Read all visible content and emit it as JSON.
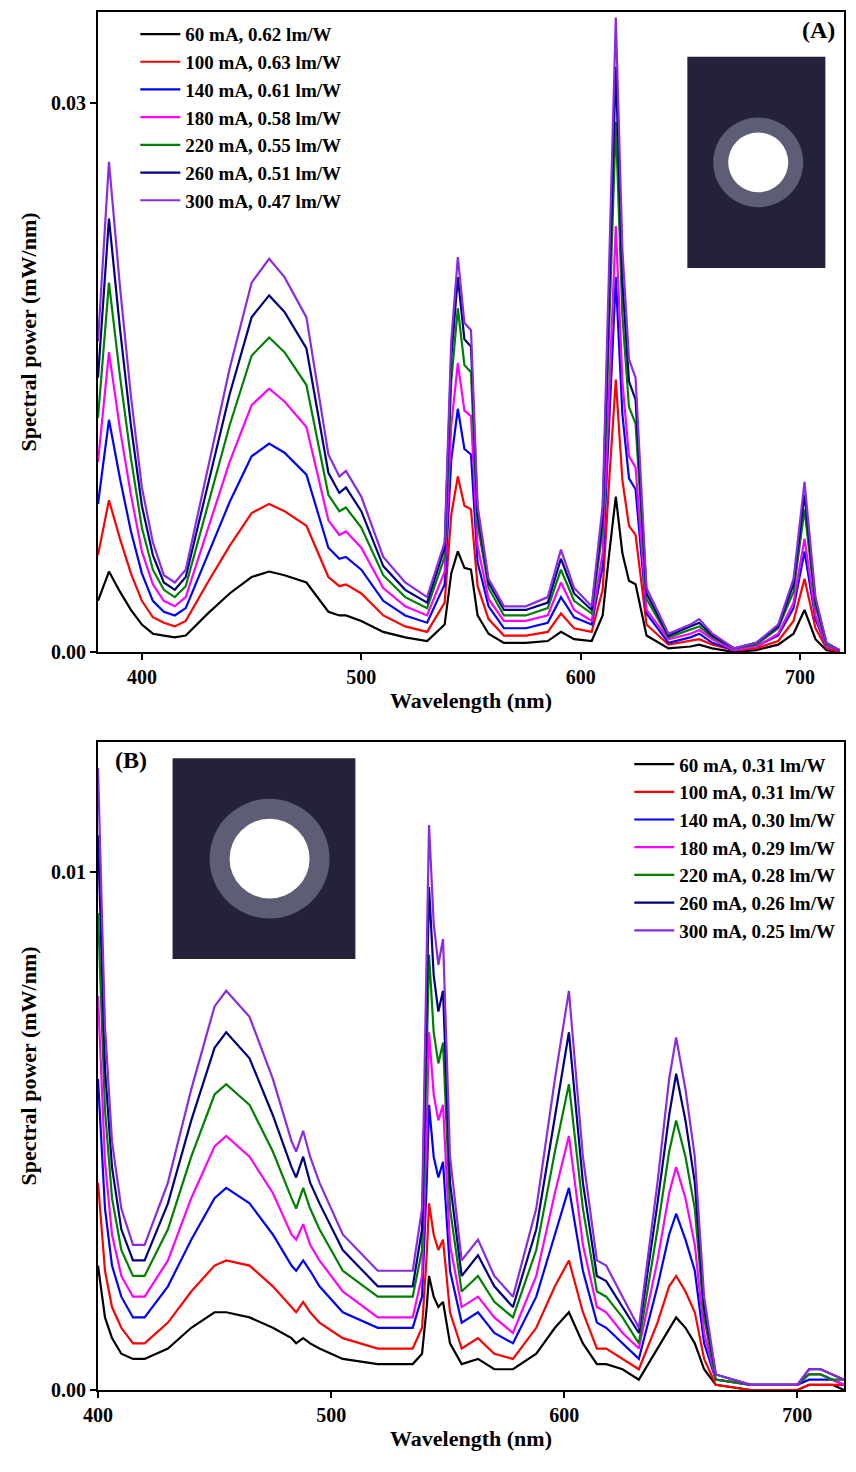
{
  "chart_data": [
    {
      "type": "line",
      "annotations": [
        "(A)"
      ],
      "x_label": "Wavelength (nm)",
      "y_label": "Spectral power (mW/nm)",
      "x": [
        380,
        385,
        390,
        395,
        400,
        405,
        410,
        415,
        420,
        430,
        440,
        450,
        458,
        465,
        475,
        485,
        490,
        493,
        500,
        510,
        520,
        530,
        538,
        541,
        544,
        547,
        550,
        553,
        558,
        565,
        575,
        585,
        591,
        597,
        605,
        610,
        613,
        616,
        619,
        622,
        625,
        630,
        640,
        650,
        654,
        660,
        670,
        680,
        690,
        697,
        702,
        707,
        712,
        718
      ],
      "xlim": [
        380,
        720
      ],
      "xticks": [
        400,
        500,
        600,
        700
      ],
      "ylim": [
        0,
        0.035
      ],
      "yticks": [
        {
          "value": 0,
          "label": "0.00"
        },
        {
          "value": 0.03,
          "label": "0.03"
        }
      ],
      "grid": false,
      "legend": "upper left",
      "series": [
        {
          "name": "60 mA, 0.62 lm/W",
          "color": "#000000",
          "values": [
            0.0028,
            0.0044,
            0.0033,
            0.0023,
            0.0015,
            0.001,
            0.0009,
            0.0008,
            0.0009,
            0.0021,
            0.0032,
            0.0041,
            0.0044,
            0.0042,
            0.0038,
            0.0022,
            0.002,
            0.002,
            0.0017,
            0.0011,
            0.0008,
            0.0006,
            0.0015,
            0.0043,
            0.0055,
            0.0046,
            0.0045,
            0.002,
            0.001,
            0.0005,
            0.0005,
            0.0006,
            0.0011,
            0.0007,
            0.0006,
            0.002,
            0.0054,
            0.0085,
            0.0054,
            0.0039,
            0.0037,
            0.0009,
            0.0002,
            0.0003,
            0.0004,
            0.0002,
            0,
            0.0001,
            0.0004,
            0.001,
            0.0023,
            0.0007,
            0.0001,
            0
          ]
        },
        {
          "name": "100 mA, 0.63 lm/W",
          "color": "#ff0000",
          "values": [
            0.0053,
            0.0083,
            0.0062,
            0.0043,
            0.0028,
            0.0019,
            0.0016,
            0.0014,
            0.0017,
            0.0038,
            0.0058,
            0.0076,
            0.0081,
            0.0077,
            0.0069,
            0.0041,
            0.0036,
            0.0037,
            0.0032,
            0.002,
            0.0014,
            0.0011,
            0.0027,
            0.0075,
            0.0096,
            0.008,
            0.0078,
            0.0036,
            0.0018,
            0.0009,
            0.0009,
            0.0011,
            0.0021,
            0.0013,
            0.0011,
            0.0034,
            0.0094,
            0.0149,
            0.0094,
            0.0069,
            0.0064,
            0.0015,
            0.0004,
            0.0006,
            0.0007,
            0.0004,
            0.0001,
            0.0002,
            0.0006,
            0.0017,
            0.004,
            0.0013,
            0.0002,
            0
          ]
        },
        {
          "name": "140 mA, 0.61 lm/W",
          "color": "#0000ff",
          "values": [
            0.0081,
            0.0127,
            0.0095,
            0.0066,
            0.0043,
            0.0028,
            0.0022,
            0.002,
            0.0024,
            0.0053,
            0.0082,
            0.0107,
            0.0114,
            0.0109,
            0.0097,
            0.0057,
            0.0051,
            0.0052,
            0.0045,
            0.0028,
            0.002,
            0.0016,
            0.0037,
            0.0105,
            0.0133,
            0.0111,
            0.0108,
            0.0049,
            0.0025,
            0.0013,
            0.0013,
            0.0016,
            0.003,
            0.0019,
            0.0015,
            0.0047,
            0.013,
            0.0205,
            0.013,
            0.0095,
            0.0089,
            0.0021,
            0.0005,
            0.0008,
            0.001,
            0.0005,
            0.0001,
            0.0003,
            0.0009,
            0.0024,
            0.0055,
            0.0018,
            0.0003,
            0.0001
          ]
        },
        {
          "name": "180 mA, 0.58 lm/W",
          "color": "#ff00ff",
          "values": [
            0.0104,
            0.0164,
            0.0122,
            0.0086,
            0.0055,
            0.0037,
            0.0028,
            0.0025,
            0.003,
            0.0067,
            0.0104,
            0.0135,
            0.0144,
            0.0137,
            0.0123,
            0.0072,
            0.0064,
            0.0066,
            0.0057,
            0.0035,
            0.0025,
            0.002,
            0.0044,
            0.0124,
            0.0158,
            0.0132,
            0.0129,
            0.0058,
            0.0029,
            0.0017,
            0.0017,
            0.002,
            0.0038,
            0.0023,
            0.0017,
            0.0054,
            0.0148,
            0.0233,
            0.0148,
            0.0107,
            0.0101,
            0.0023,
            0.0007,
            0.001,
            0.0012,
            0.0007,
            0.0001,
            0.0003,
            0.001,
            0.0027,
            0.0062,
            0.002,
            0.0003,
            0.0001
          ]
        },
        {
          "name": "220 mA, 0.55 lm/W",
          "color": "#008000",
          "values": [
            0.0128,
            0.0202,
            0.0151,
            0.0106,
            0.0068,
            0.0045,
            0.0034,
            0.003,
            0.0036,
            0.008,
            0.0124,
            0.0162,
            0.0172,
            0.0164,
            0.0146,
            0.0086,
            0.0077,
            0.0079,
            0.0068,
            0.0042,
            0.003,
            0.0024,
            0.0052,
            0.0148,
            0.0188,
            0.0157,
            0.0153,
            0.007,
            0.0035,
            0.002,
            0.002,
            0.0024,
            0.0045,
            0.0028,
            0.0021,
            0.0067,
            0.0184,
            0.029,
            0.0184,
            0.0134,
            0.0125,
            0.0029,
            0.0008,
            0.0012,
            0.0014,
            0.0008,
            0.0002,
            0.0004,
            0.0013,
            0.0033,
            0.0078,
            0.0025,
            0.0004,
            0.0001
          ]
        },
        {
          "name": "260 mA, 0.51 lm/W",
          "color": "#000080",
          "values": [
            0.015,
            0.0237,
            0.0177,
            0.0124,
            0.008,
            0.0053,
            0.0038,
            0.0034,
            0.0041,
            0.0091,
            0.0141,
            0.0183,
            0.0195,
            0.0186,
            0.0166,
            0.0098,
            0.0087,
            0.009,
            0.0077,
            0.0047,
            0.0034,
            0.0027,
            0.0057,
            0.0161,
            0.0205,
            0.0171,
            0.0167,
            0.0076,
            0.0038,
            0.0023,
            0.0023,
            0.0027,
            0.0051,
            0.0032,
            0.0023,
            0.0074,
            0.0203,
            0.032,
            0.0203,
            0.0148,
            0.0138,
            0.0032,
            0.0009,
            0.0014,
            0.0016,
            0.0009,
            0.0002,
            0.0005,
            0.0014,
            0.0037,
            0.0086,
            0.0028,
            0.0005,
            0.0001
          ]
        },
        {
          "name": "300 mA, 0.47 lm/W",
          "color": "#8a2be2",
          "values": [
            0.017,
            0.0268,
            0.02,
            0.014,
            0.009,
            0.006,
            0.0042,
            0.0038,
            0.0045,
            0.01,
            0.0155,
            0.0202,
            0.0215,
            0.0205,
            0.0183,
            0.0108,
            0.0096,
            0.0099,
            0.0085,
            0.0052,
            0.0038,
            0.003,
            0.006,
            0.017,
            0.0216,
            0.018,
            0.0176,
            0.008,
            0.004,
            0.0025,
            0.0025,
            0.003,
            0.0056,
            0.0035,
            0.0025,
            0.008,
            0.022,
            0.0347,
            0.022,
            0.016,
            0.015,
            0.0035,
            0.001,
            0.0015,
            0.0018,
            0.001,
            0.0002,
            0.0005,
            0.0015,
            0.004,
            0.0093,
            0.003,
            0.0005,
            0.0001
          ]
        }
      ]
    },
    {
      "type": "line",
      "annotations": [
        "(B)"
      ],
      "x_label": "Wavelength (nm)",
      "y_label": "Spectral power (mW/nm)",
      "x": [
        400,
        403,
        406,
        410,
        415,
        420,
        430,
        440,
        450,
        455,
        465,
        475,
        483,
        485,
        488,
        491,
        495,
        505,
        520,
        535,
        539,
        541,
        542,
        544,
        546,
        548,
        551,
        556,
        563,
        570,
        578,
        588,
        596,
        602,
        608,
        614,
        618,
        625,
        632,
        640,
        645,
        648,
        652,
        656,
        660,
        665,
        680,
        700,
        705,
        710,
        715,
        720
      ],
      "xlim": [
        400,
        720
      ],
      "xticks": [
        400,
        500,
        600,
        700
      ],
      "ylim": [
        0,
        0.0125
      ],
      "yticks": [
        {
          "value": 0,
          "label": "0.00"
        },
        {
          "value": 0.01,
          "label": "0.01"
        }
      ],
      "grid": false,
      "legend": "upper right",
      "series": [
        {
          "name": "60 mA, 0.31 lm/W",
          "color": "#000000",
          "values": [
            0.0024,
            0.0014,
            0.001,
            0.0007,
            0.0006,
            0.0006,
            0.0008,
            0.0012,
            0.0015,
            0.0015,
            0.0014,
            0.0012,
            0.001,
            0.0009,
            0.001,
            0.0009,
            0.0008,
            0.0006,
            0.0005,
            0.0005,
            0.0007,
            0.0016,
            0.0022,
            0.0018,
            0.0016,
            0.0017,
            0.0009,
            0.0005,
            0.0006,
            0.0004,
            0.0004,
            0.0007,
            0.0012,
            0.0015,
            0.0009,
            0.0005,
            0.0005,
            0.0004,
            0.0002,
            0.0008,
            0.0012,
            0.0014,
            0.0012,
            0.0009,
            0.0004,
            0.0001,
            0,
            0,
            0.0001,
            0.0001,
            0.0001,
            0
          ]
        },
        {
          "name": "100 mA, 0.31 lm/W",
          "color": "#ff0000",
          "values": [
            0.004,
            0.0023,
            0.0016,
            0.0012,
            0.0009,
            0.0009,
            0.0013,
            0.0019,
            0.0024,
            0.0025,
            0.0024,
            0.002,
            0.0016,
            0.0015,
            0.0017,
            0.0015,
            0.0013,
            0.001,
            0.0008,
            0.0008,
            0.0012,
            0.0026,
            0.0036,
            0.003,
            0.0027,
            0.0029,
            0.0015,
            0.0008,
            0.001,
            0.0007,
            0.0006,
            0.0012,
            0.002,
            0.0025,
            0.0015,
            0.0008,
            0.0008,
            0.0006,
            0.0004,
            0.0013,
            0.002,
            0.0022,
            0.0019,
            0.0015,
            0.0006,
            0.0001,
            0,
            0,
            0.0001,
            0.0001,
            0.0001,
            0.0001
          ]
        },
        {
          "name": "140 mA, 0.30 lm/W",
          "color": "#0000ff",
          "values": [
            0.006,
            0.0035,
            0.0024,
            0.0018,
            0.0014,
            0.0014,
            0.002,
            0.0029,
            0.0037,
            0.0039,
            0.0036,
            0.003,
            0.0024,
            0.0023,
            0.0025,
            0.0023,
            0.002,
            0.0015,
            0.0012,
            0.0012,
            0.0018,
            0.004,
            0.0055,
            0.0045,
            0.0041,
            0.0044,
            0.0023,
            0.0013,
            0.0015,
            0.0011,
            0.0009,
            0.0018,
            0.003,
            0.0039,
            0.0023,
            0.0013,
            0.0012,
            0.0009,
            0.0006,
            0.002,
            0.003,
            0.0034,
            0.0029,
            0.0023,
            0.0009,
            0.0002,
            0.0001,
            0.0001,
            0.0002,
            0.0002,
            0.0002,
            0.0001
          ]
        },
        {
          "name": "180 mA, 0.29 lm/W",
          "color": "#ff00ff",
          "values": [
            0.0076,
            0.0044,
            0.003,
            0.0022,
            0.0018,
            0.0018,
            0.0025,
            0.0037,
            0.0047,
            0.0049,
            0.0045,
            0.0038,
            0.003,
            0.0029,
            0.0032,
            0.0028,
            0.0025,
            0.0019,
            0.0014,
            0.0014,
            0.0022,
            0.005,
            0.0069,
            0.0057,
            0.0052,
            0.0055,
            0.0028,
            0.0016,
            0.0018,
            0.0014,
            0.0011,
            0.0022,
            0.0038,
            0.0049,
            0.0028,
            0.0016,
            0.0015,
            0.0011,
            0.0008,
            0.0025,
            0.0038,
            0.0043,
            0.0037,
            0.0028,
            0.0011,
            0.0002,
            0.0001,
            0.0001,
            0.0003,
            0.0003,
            0.0002,
            0.0001
          ]
        },
        {
          "name": "220 mA, 0.28 lm/W",
          "color": "#008000",
          "values": [
            0.0092,
            0.0054,
            0.0037,
            0.0027,
            0.0022,
            0.0022,
            0.0031,
            0.0045,
            0.0057,
            0.0059,
            0.0055,
            0.0046,
            0.0037,
            0.0035,
            0.0039,
            0.0035,
            0.0031,
            0.0023,
            0.0018,
            0.0018,
            0.0027,
            0.0062,
            0.0084,
            0.0069,
            0.0063,
            0.0067,
            0.0035,
            0.0019,
            0.0022,
            0.0017,
            0.0014,
            0.0027,
            0.0046,
            0.0059,
            0.0035,
            0.0019,
            0.0018,
            0.0014,
            0.0009,
            0.0031,
            0.0046,
            0.0052,
            0.0045,
            0.0035,
            0.0014,
            0.0002,
            0.0001,
            0.0001,
            0.0003,
            0.0003,
            0.0002,
            0.0002
          ]
        },
        {
          "name": "260 mA, 0.26 lm/W",
          "color": "#000080",
          "values": [
            0.0107,
            0.0062,
            0.0043,
            0.0031,
            0.0025,
            0.0025,
            0.0036,
            0.0052,
            0.0066,
            0.0069,
            0.0064,
            0.0053,
            0.0043,
            0.0041,
            0.0045,
            0.004,
            0.0036,
            0.0027,
            0.002,
            0.002,
            0.0031,
            0.0071,
            0.0097,
            0.008,
            0.0073,
            0.0077,
            0.004,
            0.0022,
            0.0026,
            0.002,
            0.0016,
            0.0031,
            0.0053,
            0.0069,
            0.004,
            0.0022,
            0.0021,
            0.0016,
            0.0011,
            0.0036,
            0.0053,
            0.0061,
            0.0052,
            0.004,
            0.0016,
            0.0003,
            0.0001,
            0.0001,
            0.0004,
            0.0004,
            0.0003,
            0.0002
          ]
        },
        {
          "name": "300 mA, 0.25 lm/W",
          "color": "#8a2be2",
          "values": [
            0.012,
            0.007,
            0.0048,
            0.0035,
            0.0028,
            0.0028,
            0.004,
            0.0058,
            0.0074,
            0.0077,
            0.0072,
            0.006,
            0.0048,
            0.0046,
            0.005,
            0.0045,
            0.004,
            0.003,
            0.0023,
            0.0023,
            0.0035,
            0.008,
            0.0109,
            0.009,
            0.0082,
            0.0087,
            0.0045,
            0.0025,
            0.0029,
            0.0022,
            0.0018,
            0.0035,
            0.006,
            0.0077,
            0.0045,
            0.0025,
            0.0024,
            0.0018,
            0.0012,
            0.004,
            0.006,
            0.0068,
            0.0058,
            0.0045,
            0.0018,
            0.0003,
            0.0001,
            0.0001,
            0.0004,
            0.0004,
            0.0003,
            0.0002
          ]
        }
      ]
    }
  ]
}
